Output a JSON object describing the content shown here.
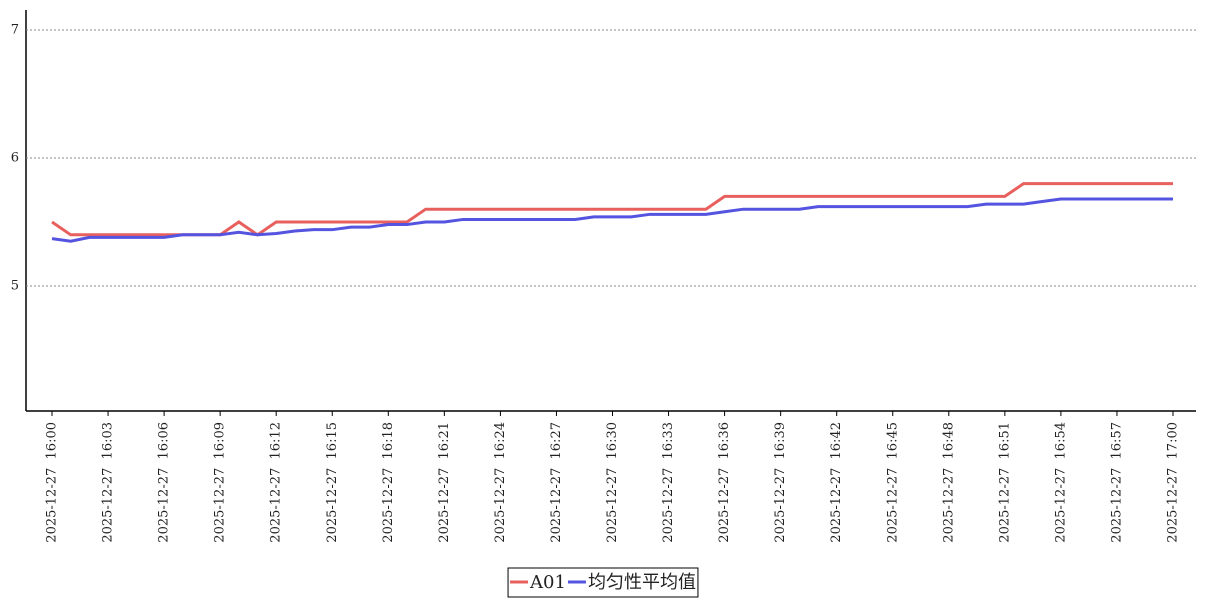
{
  "chart_data": {
    "type": "line",
    "categories": [
      "2025-12-27  16:00",
      null,
      null,
      "2025-12-27  16:03",
      null,
      null,
      "2025-12-27  16:06",
      null,
      null,
      "2025-12-27  16:09",
      null,
      null,
      "2025-12-27  16:12",
      null,
      null,
      "2025-12-27  16:15",
      null,
      null,
      "2025-12-27  16:18",
      null,
      null,
      "2025-12-27  16:21",
      null,
      null,
      "2025-12-27  16:24",
      null,
      null,
      "2025-12-27  16:27",
      null,
      null,
      "2025-12-27  16:30",
      null,
      null,
      "2025-12-27  16:33",
      null,
      null,
      "2025-12-27  16:36",
      null,
      null,
      "2025-12-27  16:39",
      null,
      null,
      "2025-12-27  16:42",
      null,
      null,
      "2025-12-27  16:45",
      null,
      null,
      "2025-12-27  16:48",
      null,
      null,
      "2025-12-27  16:51",
      null,
      null,
      "2025-12-27  16:54",
      null,
      null,
      "2025-12-27  16:57",
      null,
      null,
      "2025-12-27  17:00"
    ],
    "series": [
      {
        "name": "A01",
        "color": "#e8605e",
        "values": [
          5.5,
          5.4,
          5.4,
          5.4,
          5.4,
          5.4,
          5.4,
          5.4,
          5.4,
          5.4,
          5.5,
          5.4,
          5.5,
          5.5,
          5.5,
          5.5,
          5.5,
          5.5,
          5.5,
          5.5,
          5.6,
          5.6,
          5.6,
          5.6,
          5.6,
          5.6,
          5.6,
          5.6,
          5.6,
          5.6,
          5.6,
          5.6,
          5.6,
          5.6,
          5.6,
          5.6,
          5.7,
          5.7,
          5.7,
          5.7,
          5.7,
          5.7,
          5.7,
          5.7,
          5.7,
          5.7,
          5.7,
          5.7,
          5.7,
          5.7,
          5.7,
          5.7,
          5.8,
          5.8,
          5.8,
          5.8,
          5.8,
          5.8,
          5.8,
          5.8,
          5.8
        ]
      },
      {
        "name": "均匀性平均值",
        "color": "#5454e0",
        "values": [
          5.37,
          5.35,
          5.38,
          5.38,
          5.38,
          5.38,
          5.38,
          5.4,
          5.4,
          5.4,
          5.42,
          5.4,
          5.41,
          5.43,
          5.44,
          5.44,
          5.46,
          5.46,
          5.48,
          5.48,
          5.5,
          5.5,
          5.52,
          5.52,
          5.52,
          5.52,
          5.52,
          5.52,
          5.52,
          5.54,
          5.54,
          5.54,
          5.56,
          5.56,
          5.56,
          5.56,
          5.58,
          5.6,
          5.6,
          5.6,
          5.6,
          5.62,
          5.62,
          5.62,
          5.62,
          5.62,
          5.62,
          5.62,
          5.62,
          5.62,
          5.64,
          5.64,
          5.64,
          5.66,
          5.68,
          5.68,
          5.68,
          5.68,
          5.68,
          5.68,
          5.68
        ]
      }
    ],
    "ylim": [
      4,
      7
    ],
    "yticks": [
      5,
      6,
      7
    ],
    "grid": true,
    "legend": "bottom"
  }
}
